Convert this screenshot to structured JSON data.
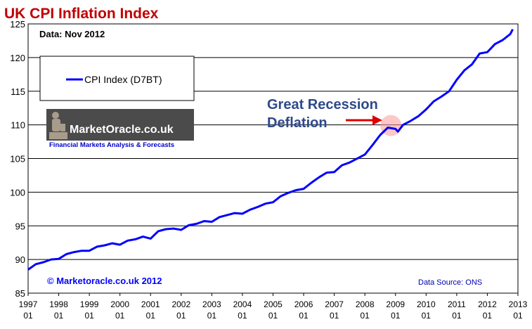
{
  "chart_data": {
    "type": "line",
    "title": "UK CPI Inflation Index",
    "subtitle": "Data: Nov 2012",
    "xlabel": "",
    "ylabel": "",
    "ylim": [
      85,
      125
    ],
    "yticks": [
      85,
      90,
      95,
      100,
      105,
      110,
      115,
      120,
      125
    ],
    "x_range": [
      1997.0,
      2013.0
    ],
    "xtick_years": [
      "1997",
      "1998",
      "1999",
      "2000",
      "2001",
      "2002",
      "2003",
      "2004",
      "2005",
      "2006",
      "2007",
      "2008",
      "2009",
      "2010",
      "2011",
      "2012",
      "2013"
    ],
    "xtick_month": "01",
    "grid": "horizontal",
    "legend": {
      "position": "top-left",
      "entries": [
        "CPI Index (D7BT)"
      ]
    },
    "series": [
      {
        "name": "CPI Index (D7BT)",
        "color": "#0000ff",
        "points": [
          [
            1997.0,
            88.5
          ],
          [
            1997.25,
            89.3
          ],
          [
            1997.5,
            89.6
          ],
          [
            1997.75,
            90.0
          ],
          [
            1998.0,
            90.1
          ],
          [
            1998.25,
            90.8
          ],
          [
            1998.5,
            91.1
          ],
          [
            1998.75,
            91.3
          ],
          [
            1999.0,
            91.3
          ],
          [
            1999.25,
            91.9
          ],
          [
            1999.5,
            92.1
          ],
          [
            1999.75,
            92.4
          ],
          [
            2000.0,
            92.2
          ],
          [
            2000.25,
            92.8
          ],
          [
            2000.5,
            93.0
          ],
          [
            2000.75,
            93.4
          ],
          [
            2001.0,
            93.1
          ],
          [
            2001.25,
            94.2
          ],
          [
            2001.5,
            94.5
          ],
          [
            2001.75,
            94.6
          ],
          [
            2002.0,
            94.4
          ],
          [
            2002.25,
            95.1
          ],
          [
            2002.5,
            95.3
          ],
          [
            2002.75,
            95.7
          ],
          [
            2003.0,
            95.6
          ],
          [
            2003.25,
            96.3
          ],
          [
            2003.5,
            96.6
          ],
          [
            2003.75,
            96.9
          ],
          [
            2004.0,
            96.8
          ],
          [
            2004.25,
            97.4
          ],
          [
            2004.5,
            97.8
          ],
          [
            2004.75,
            98.3
          ],
          [
            2005.0,
            98.5
          ],
          [
            2005.25,
            99.4
          ],
          [
            2005.5,
            99.9
          ],
          [
            2005.75,
            100.3
          ],
          [
            2006.0,
            100.5
          ],
          [
            2006.25,
            101.4
          ],
          [
            2006.5,
            102.2
          ],
          [
            2006.75,
            102.9
          ],
          [
            2007.0,
            103.0
          ],
          [
            2007.25,
            104.0
          ],
          [
            2007.5,
            104.4
          ],
          [
            2007.75,
            105.0
          ],
          [
            2008.0,
            105.6
          ],
          [
            2008.25,
            107.0
          ],
          [
            2008.5,
            108.5
          ],
          [
            2008.75,
            109.6
          ],
          [
            2009.0,
            109.4
          ],
          [
            2009.08,
            109.0
          ],
          [
            2009.25,
            110.0
          ],
          [
            2009.5,
            110.6
          ],
          [
            2009.75,
            111.3
          ],
          [
            2010.0,
            112.3
          ],
          [
            2010.25,
            113.5
          ],
          [
            2010.5,
            114.2
          ],
          [
            2010.75,
            115.0
          ],
          [
            2011.0,
            116.7
          ],
          [
            2011.25,
            118.1
          ],
          [
            2011.5,
            119.0
          ],
          [
            2011.75,
            120.6
          ],
          [
            2012.0,
            120.8
          ],
          [
            2012.25,
            122.0
          ],
          [
            2012.5,
            122.6
          ],
          [
            2012.75,
            123.5
          ],
          [
            2012.83,
            124.2
          ]
        ]
      }
    ],
    "annotations": [
      {
        "lines": [
          "Great Recession",
          "Deflation"
        ],
        "color": "#2e4a8c",
        "arrow_color": "#e00000",
        "highlight_x": 2008.85,
        "highlight_y": 109.9,
        "target": "2008-2009 dip"
      }
    ],
    "watermark": {
      "site": "MarketOracle.co.uk",
      "tagline": "Financial Markets Analysis & Forecasts"
    },
    "footer_left": "© Marketoracle.co.uk 2012",
    "footer_right": "Data Source: ONS"
  },
  "colors": {
    "title": "#c00000",
    "line": "#0000ff",
    "copyright": "#0000ff",
    "source": "#0000aa",
    "grid": "#000000",
    "highlight": "#ffb0b0"
  }
}
